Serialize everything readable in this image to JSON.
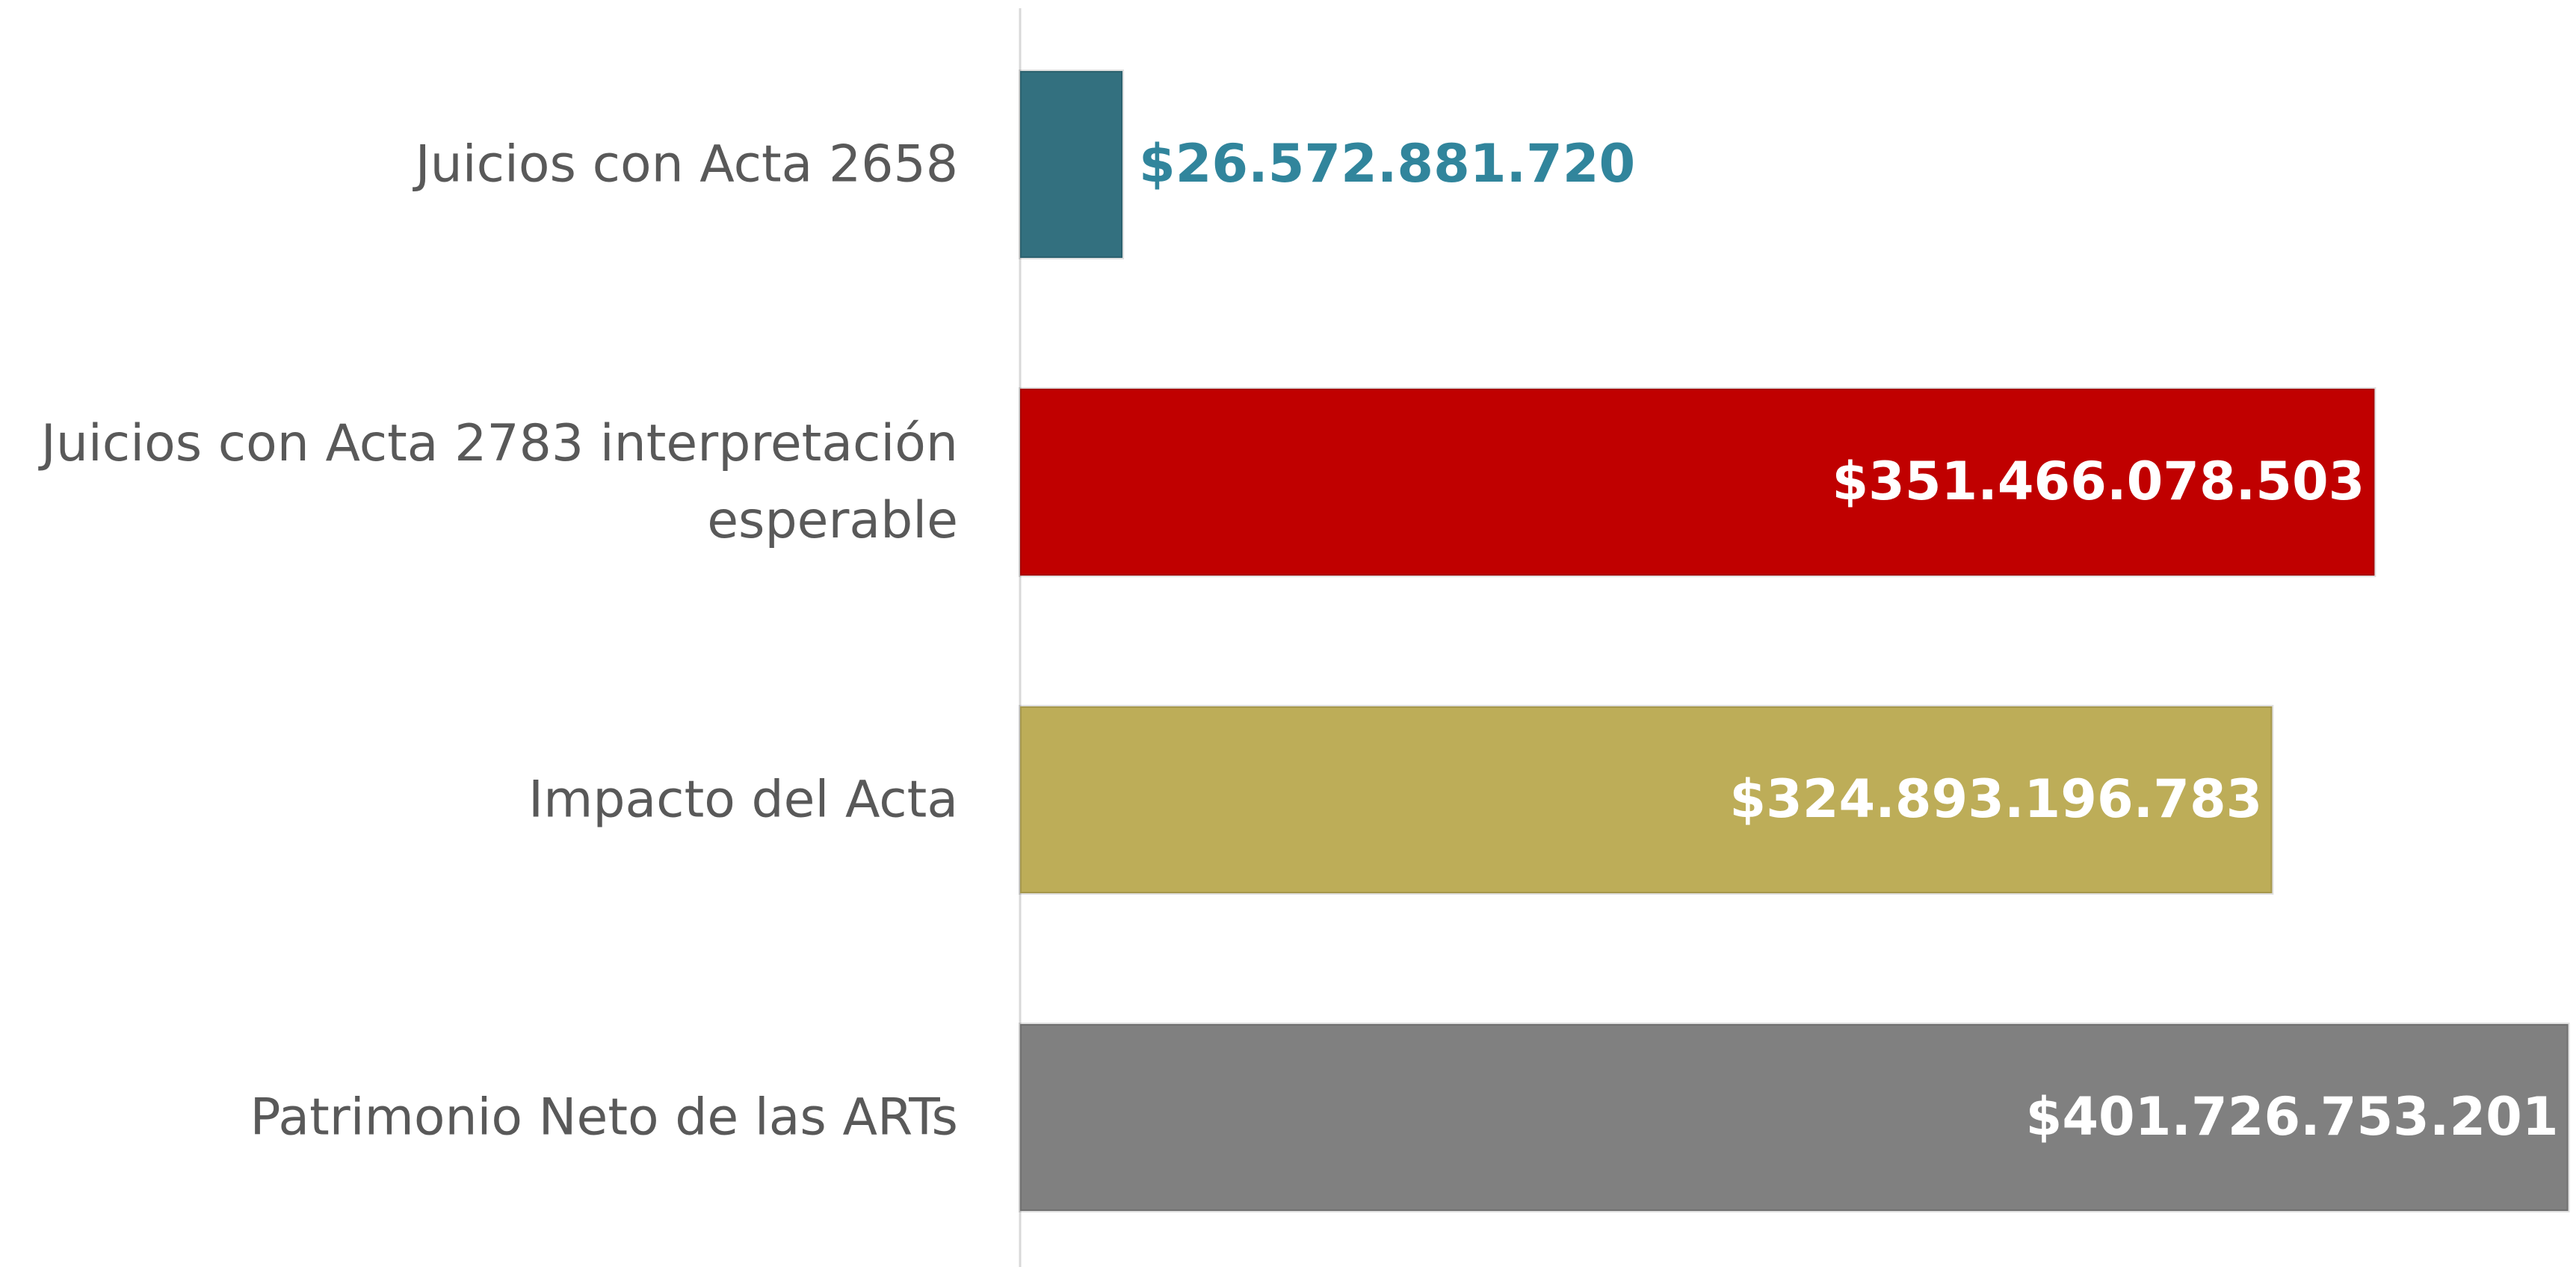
{
  "chart_data": {
    "type": "barh",
    "categories": [
      "Juicios con Acta 2658",
      "Juicios con Acta 2783 interpretación esperable",
      "Impacto del Acta",
      "Patrimonio Neto de las ARTs"
    ],
    "values": [
      26572881720,
      351466078503,
      324893196783,
      401726753201
    ],
    "value_labels": [
      "$26.572.881.720",
      "$351.466.078.503",
      "$324.893.196.783",
      "$401.726.753.201"
    ],
    "colors": [
      "#33707f",
      "#c00000",
      "#bdad58",
      "#808080"
    ],
    "inside_label_color": "#ffffff",
    "outside_label_color": "#31859c",
    "xlim": [
      0,
      402000000000
    ]
  }
}
